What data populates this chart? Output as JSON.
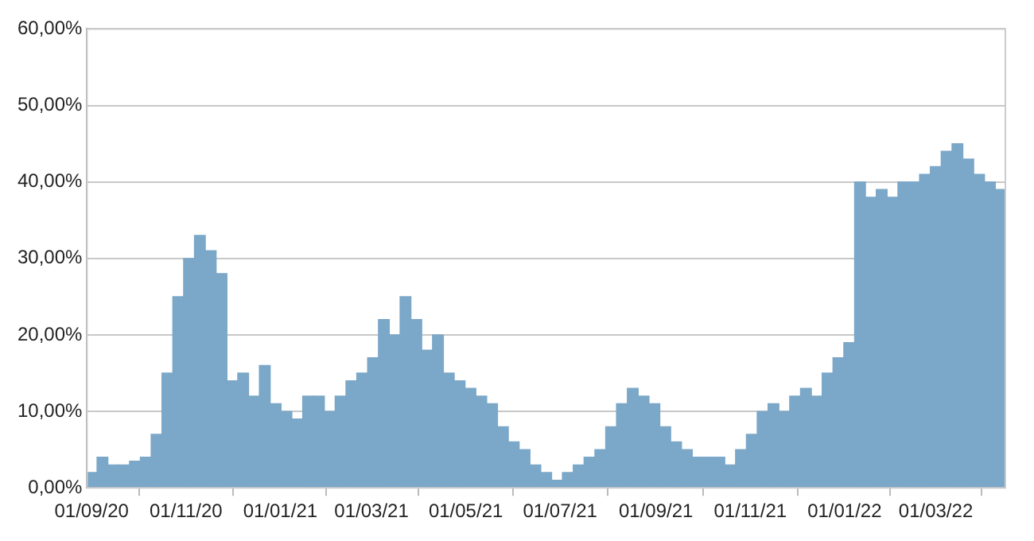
{
  "chart_data": {
    "type": "bar",
    "x": [
      "2020-09-01",
      "2020-09-08",
      "2020-09-15",
      "2020-09-22",
      "2020-09-29",
      "2020-10-06",
      "2020-10-13",
      "2020-10-20",
      "2020-10-27",
      "2020-11-03",
      "2020-11-10",
      "2020-11-17",
      "2020-11-24",
      "2020-12-01",
      "2020-12-08",
      "2020-12-15",
      "2020-12-22",
      "2020-12-29",
      "2021-01-05",
      "2021-01-12",
      "2021-01-19",
      "2021-01-26",
      "2021-02-02",
      "2021-02-09",
      "2021-02-16",
      "2021-02-23",
      "2021-03-02",
      "2021-03-09",
      "2021-03-16",
      "2021-03-23",
      "2021-03-30",
      "2021-04-06",
      "2021-04-13",
      "2021-04-20",
      "2021-04-27",
      "2021-05-04",
      "2021-05-11",
      "2021-05-18",
      "2021-05-25",
      "2021-06-01",
      "2021-06-08",
      "2021-06-15",
      "2021-06-22",
      "2021-06-29",
      "2021-07-06",
      "2021-07-13",
      "2021-07-20",
      "2021-07-27",
      "2021-08-03",
      "2021-08-10",
      "2021-08-17",
      "2021-08-24",
      "2021-08-31",
      "2021-09-07",
      "2021-09-14",
      "2021-09-21",
      "2021-09-28",
      "2021-10-05",
      "2021-10-12",
      "2021-10-19",
      "2021-10-26",
      "2021-11-02",
      "2021-11-09",
      "2021-11-16",
      "2021-11-23",
      "2021-11-30",
      "2021-12-07",
      "2021-12-14",
      "2021-12-21",
      "2021-12-28",
      "2022-01-04",
      "2022-01-11",
      "2022-01-18",
      "2022-01-25",
      "2022-02-01",
      "2022-02-08",
      "2022-02-15",
      "2022-02-22",
      "2022-03-01",
      "2022-03-08",
      "2022-03-15",
      "2022-03-22",
      "2022-03-29",
      "2022-04-05",
      "2022-04-12"
    ],
    "values": [
      2,
      4,
      3,
      3,
      3.5,
      4,
      7,
      15,
      25,
      30,
      33,
      31,
      28,
      14,
      15,
      12,
      16,
      11,
      10,
      9,
      12,
      12,
      10,
      12,
      14,
      15,
      17,
      22,
      20,
      25,
      22,
      18,
      20,
      15,
      14,
      13,
      12,
      11,
      8,
      6,
      5,
      3,
      2,
      1,
      2,
      3,
      4,
      5,
      8,
      11,
      13,
      12,
      11,
      8,
      6,
      5,
      4,
      4,
      4,
      3,
      5,
      7,
      10,
      11,
      10,
      12,
      13,
      12,
      15,
      17,
      19,
      40,
      38,
      39,
      38,
      40,
      40,
      41,
      42,
      44,
      45,
      43,
      41,
      40,
      39
    ],
    "color": "#7ba7c8",
    "xlim": [
      "2020-08-29",
      "2022-04-15"
    ],
    "xticks": [
      {
        "value": "2020-09-01",
        "label": "01/09/20"
      },
      {
        "value": "2020-11-01",
        "label": "01/11/20"
      },
      {
        "value": "2021-01-01",
        "label": "01/01/21"
      },
      {
        "value": "2021-03-01",
        "label": "01/03/21"
      },
      {
        "value": "2021-05-01",
        "label": "01/05/21"
      },
      {
        "value": "2021-07-01",
        "label": "01/07/21"
      },
      {
        "value": "2021-09-01",
        "label": "01/09/21"
      },
      {
        "value": "2021-11-01",
        "label": "01/11/21"
      },
      {
        "value": "2022-01-01",
        "label": "01/01/22"
      },
      {
        "value": "2022-03-01",
        "label": "01/03/22"
      }
    ],
    "ylim": [
      0,
      60
    ],
    "yticks": [
      {
        "value": 0,
        "label": "0,00%"
      },
      {
        "value": 10,
        "label": "10,00%"
      },
      {
        "value": 20,
        "label": "20,00%"
      },
      {
        "value": 30,
        "label": "30,00%"
      },
      {
        "value": 40,
        "label": "40,00%"
      },
      {
        "value": 50,
        "label": "50,00%"
      },
      {
        "value": 60,
        "label": "60,00%"
      }
    ],
    "grid": "y",
    "legend": false
  }
}
